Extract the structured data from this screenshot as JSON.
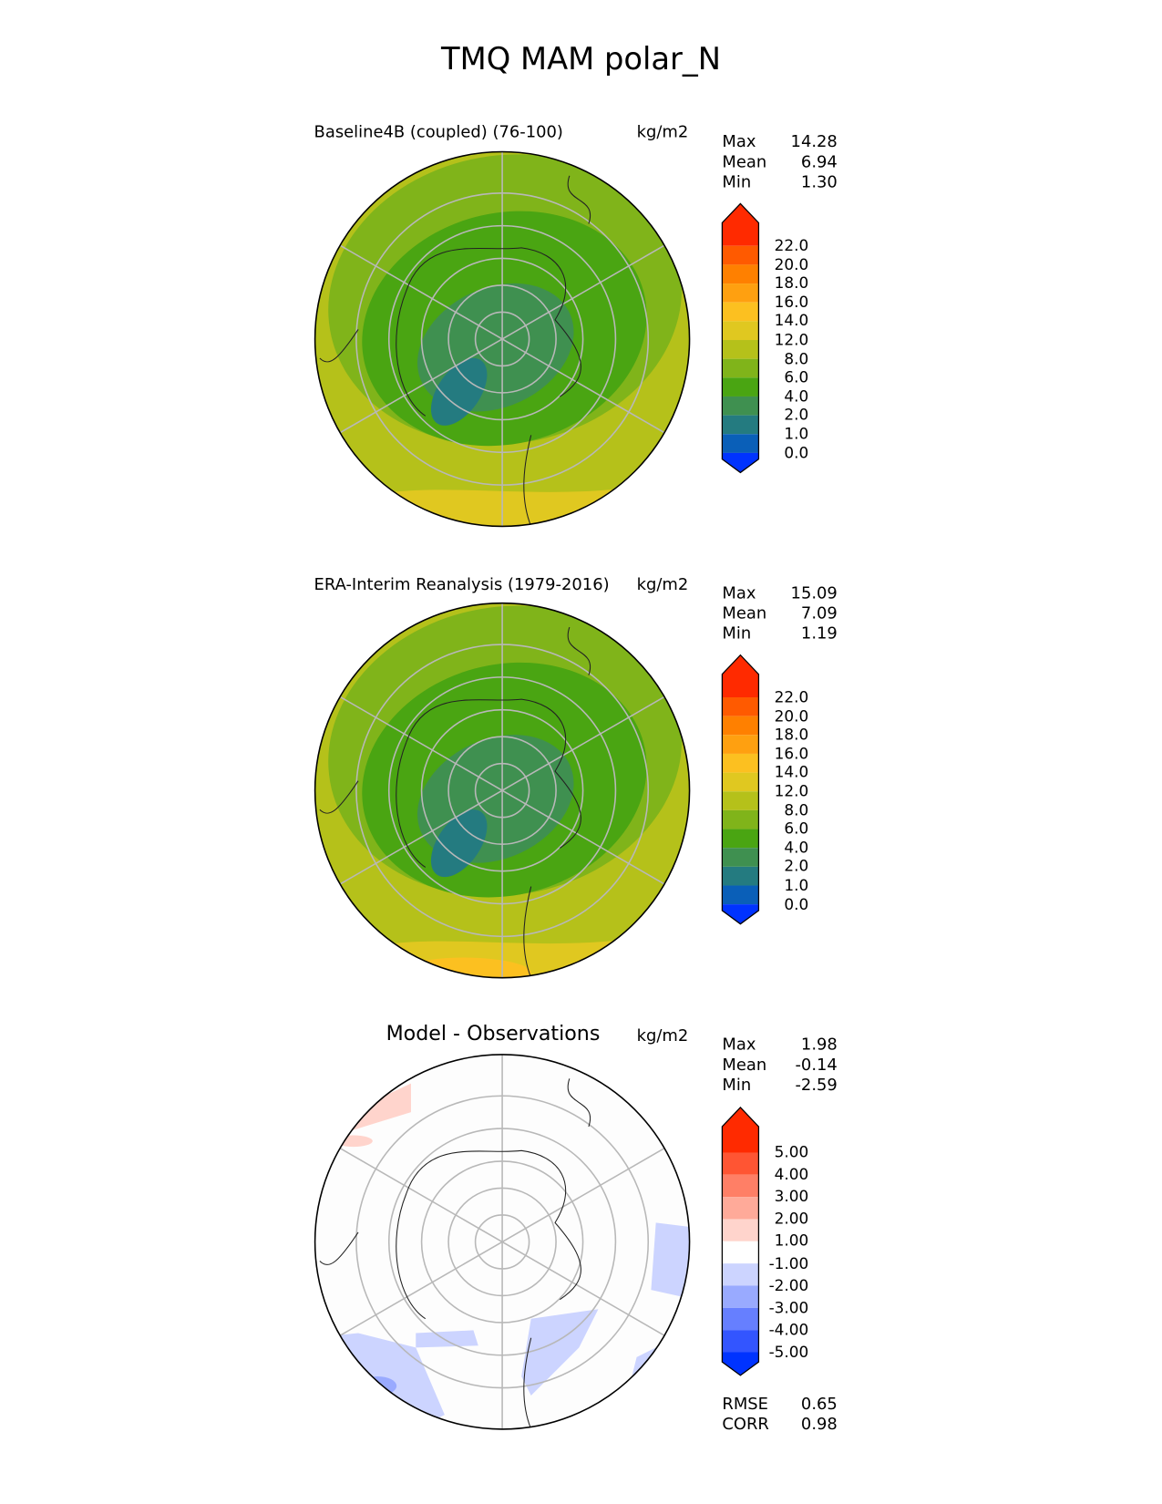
{
  "title": "TMQ MAM polar_N",
  "chart_data": [
    {
      "type": "heatmap",
      "projection": "north polar stereographic",
      "title": "Baseline4B (coupled) (76-100)",
      "units": "kg/m2",
      "stats": {
        "Max": "14.28",
        "Mean": "6.94",
        "Min": "1.30"
      },
      "colorbar": {
        "ticks": [
          "22.0",
          "20.0",
          "18.0",
          "16.0",
          "14.0",
          "12.0",
          "8.0",
          "6.0",
          "4.0",
          "2.0",
          "1.0",
          "0.0"
        ],
        "colors": [
          "#ff2a00",
          "#ff5a00",
          "#ff8000",
          "#ffa010",
          "#fcc020",
          "#e0c820",
          "#b5c11a",
          "#80b41a",
          "#4aa512",
          "#3f9050",
          "#247b80",
          "#0a5fb8",
          "#0033ff"
        ]
      }
    },
    {
      "type": "heatmap",
      "projection": "north polar stereographic",
      "title": "ERA-Interim Reanalysis (1979-2016)",
      "units": "kg/m2",
      "stats": {
        "Max": "15.09",
        "Mean": "7.09",
        "Min": "1.19"
      },
      "colorbar": {
        "ticks": [
          "22.0",
          "20.0",
          "18.0",
          "16.0",
          "14.0",
          "12.0",
          "8.0",
          "6.0",
          "4.0",
          "2.0",
          "1.0",
          "0.0"
        ],
        "colors": [
          "#ff2a00",
          "#ff5a00",
          "#ff8000",
          "#ffa010",
          "#fcc020",
          "#e0c820",
          "#b5c11a",
          "#80b41a",
          "#4aa512",
          "#3f9050",
          "#247b80",
          "#0a5fb8",
          "#0033ff"
        ]
      }
    },
    {
      "type": "heatmap",
      "projection": "north polar stereographic",
      "title": "Model - Observations",
      "units": "kg/m2",
      "stats": {
        "Max": "1.98",
        "Mean": "-0.14",
        "Min": "-2.59"
      },
      "colorbar": {
        "ticks": [
          "5.00",
          "4.00",
          "3.00",
          "2.00",
          "1.00",
          "-1.00",
          "-2.00",
          "-3.00",
          "-4.00",
          "-5.00"
        ],
        "colors": [
          "#ff2a00",
          "#ff5533",
          "#ff7f66",
          "#ffaa99",
          "#ffd4cc",
          "#ffffff",
          "#ccd4ff",
          "#99aaff",
          "#667fff",
          "#3355ff",
          "#0033ff"
        ]
      },
      "metrics": {
        "RMSE": "0.65",
        "CORR": "0.98"
      }
    }
  ]
}
